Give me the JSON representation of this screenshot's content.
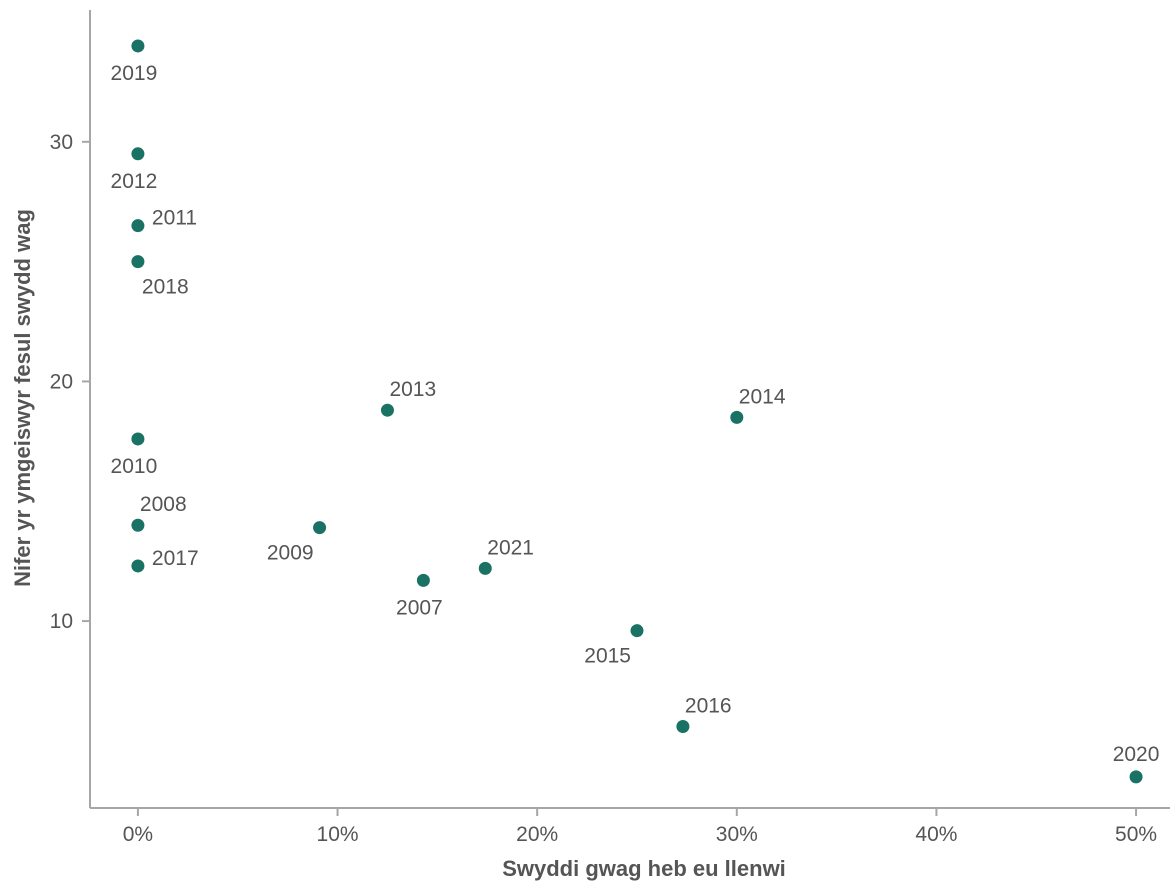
{
  "chart_data": {
    "type": "scatter",
    "title": "",
    "xlabel": "Swyddi gwag heb eu llenwi",
    "ylabel": "Nifer yr ymgeiswyr fesul swydd wag",
    "xlim": [
      -0.024,
      0.517
    ],
    "ylim": [
      2.2,
      35.5
    ],
    "x_ticks": [
      0,
      0.1,
      0.2,
      0.3,
      0.4,
      0.5
    ],
    "x_tick_labels": [
      "0%",
      "10%",
      "20%",
      "30%",
      "40%",
      "50%"
    ],
    "y_ticks": [
      10,
      20,
      30
    ],
    "y_tick_labels": [
      "10",
      "20",
      "30"
    ],
    "grid": false,
    "legend": "none",
    "colors": {
      "point": "#1a7265",
      "axis": "#a6a6a6",
      "text": "#555555"
    },
    "points": [
      {
        "label": "2007",
        "x": 0.143,
        "y": 11.7,
        "label_pos": "below"
      },
      {
        "label": "2008",
        "x": 0.0,
        "y": 14.0,
        "label_pos": "above-right"
      },
      {
        "label": "2009",
        "x": 0.091,
        "y": 13.9,
        "label_pos": "below-left"
      },
      {
        "label": "2010",
        "x": 0.0,
        "y": 17.6,
        "label_pos": "below"
      },
      {
        "label": "2011",
        "x": 0.0,
        "y": 26.5,
        "label_pos": "right"
      },
      {
        "label": "2012",
        "x": 0.0,
        "y": 29.5,
        "label_pos": "below"
      },
      {
        "label": "2013",
        "x": 0.125,
        "y": 18.8,
        "label_pos": "above-right"
      },
      {
        "label": "2014",
        "x": 0.3,
        "y": 18.5,
        "label_pos": "above-right"
      },
      {
        "label": "2015",
        "x": 0.25,
        "y": 9.6,
        "label_pos": "below-left"
      },
      {
        "label": "2016",
        "x": 0.273,
        "y": 5.6,
        "label_pos": "above-right"
      },
      {
        "label": "2017",
        "x": 0.0,
        "y": 12.3,
        "label_pos": "right"
      },
      {
        "label": "2018",
        "x": 0.0,
        "y": 25.0,
        "label_pos": "below-right"
      },
      {
        "label": "2019",
        "x": 0.0,
        "y": 34.0,
        "label_pos": "below"
      },
      {
        "label": "2020",
        "x": 0.5,
        "y": 3.5,
        "label_pos": "above"
      },
      {
        "label": "2021",
        "x": 0.174,
        "y": 12.2,
        "label_pos": "above-right"
      }
    ]
  }
}
